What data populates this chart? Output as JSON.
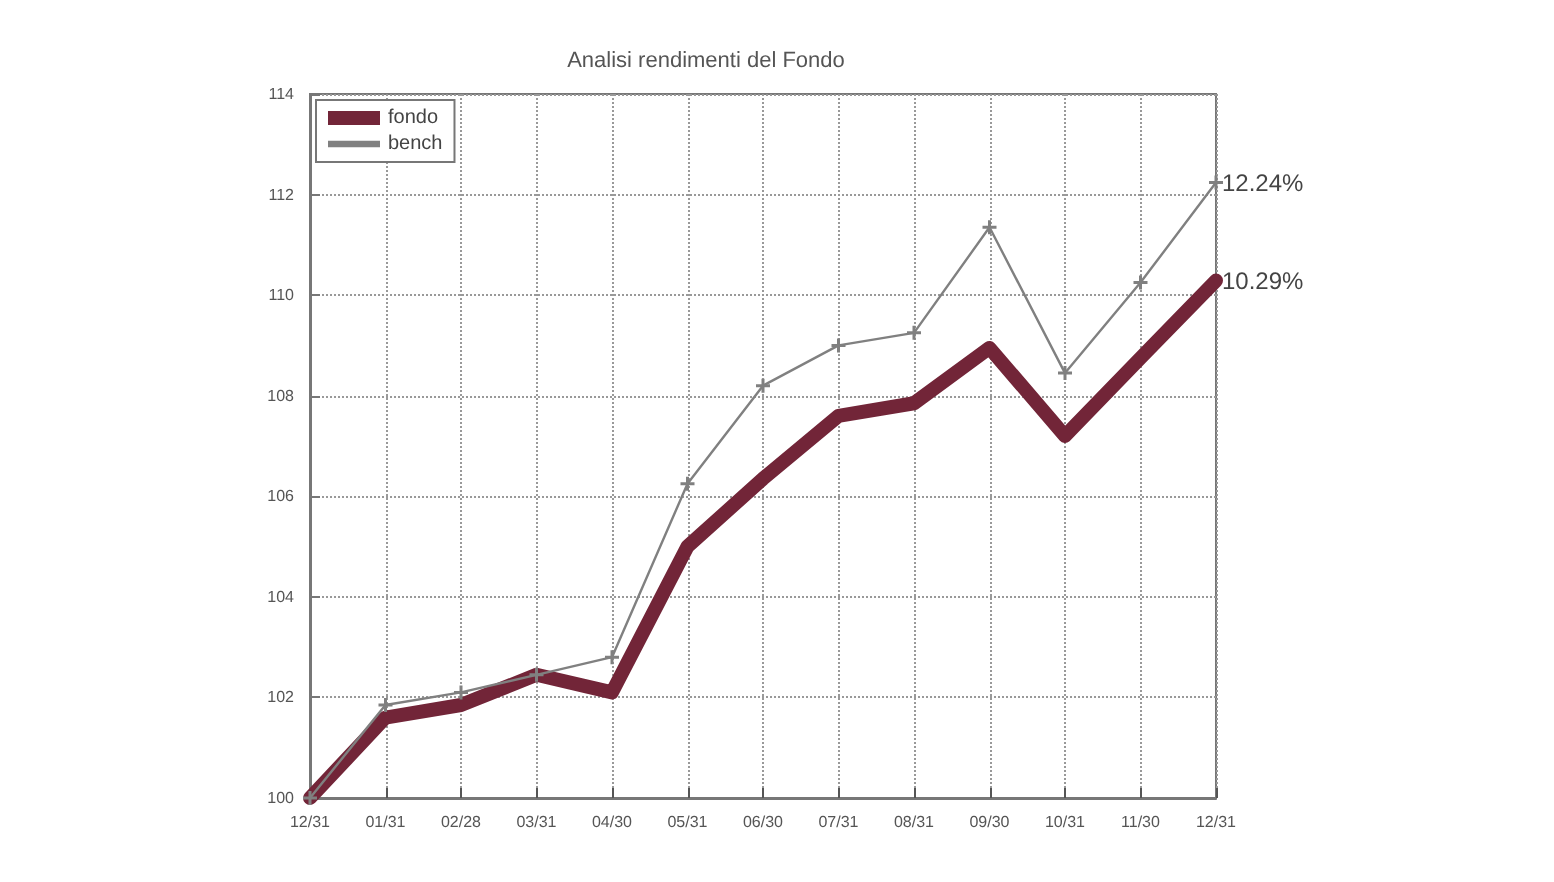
{
  "chart_data": {
    "type": "line",
    "title": "Analisi rendimenti del Fondo",
    "categories": [
      "12/31",
      "01/31",
      "02/28",
      "03/31",
      "04/30",
      "05/31",
      "06/30",
      "07/31",
      "08/31",
      "09/30",
      "10/31",
      "11/30",
      "12/31"
    ],
    "series": [
      {
        "name": "fondo",
        "color": "#722538",
        "marker": "none",
        "values": [
          100,
          101.6,
          101.85,
          102.45,
          102.1,
          105.0,
          106.35,
          107.6,
          107.85,
          108.95,
          107.2,
          108.75,
          110.29
        ]
      },
      {
        "name": "bench",
        "color": "#808080",
        "marker": "cross",
        "values": [
          100,
          101.85,
          102.1,
          102.45,
          102.8,
          106.25,
          108.2,
          109.0,
          109.25,
          111.35,
          108.45,
          110.25,
          112.24
        ]
      }
    ],
    "annotations": [
      "12.24%",
      "10.29%"
    ],
    "ylim": [
      100,
      114
    ],
    "yticks": [
      100,
      102,
      104,
      106,
      108,
      110,
      112,
      114
    ],
    "grid": true,
    "legend": "top left"
  }
}
